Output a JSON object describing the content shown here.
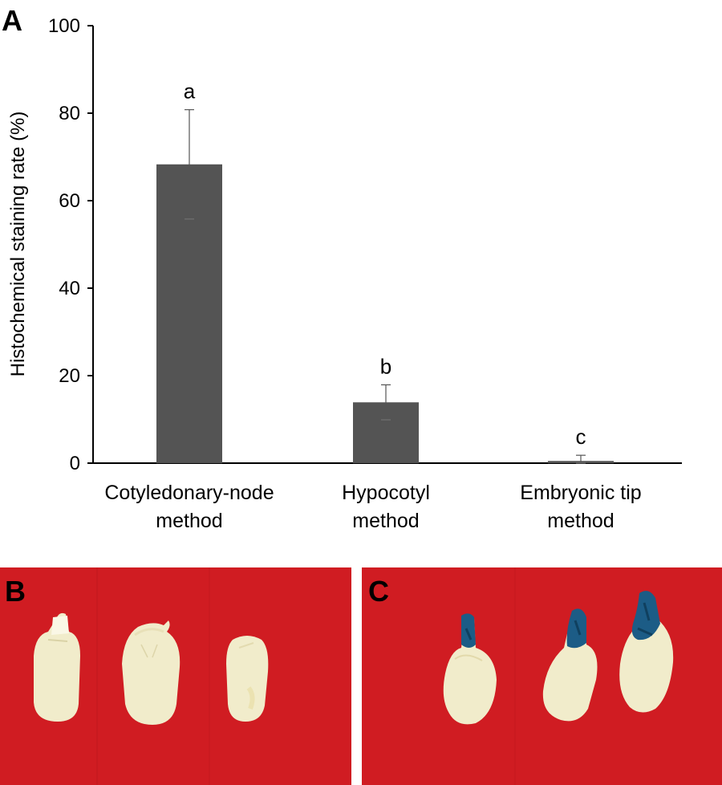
{
  "panel_labels": {
    "a": "A",
    "b": "B",
    "c": "C"
  },
  "chart_data": {
    "type": "bar",
    "title": "",
    "xlabel": "",
    "ylabel": "Histochemical staining rate (%)",
    "ylim": [
      0,
      100
    ],
    "yticks": [
      0,
      20,
      40,
      60,
      80,
      100
    ],
    "categories": [
      [
        "Cotyledonary-node",
        "method"
      ],
      [
        "Hypocotyl",
        "method"
      ],
      [
        "Embryonic tip",
        "method"
      ]
    ],
    "values": [
      68.3,
      13.9,
      0.5
    ],
    "errors": [
      12.5,
      4.0,
      1.3
    ],
    "significance_letters": [
      "a",
      "b",
      "c"
    ],
    "bar_color": "#545454",
    "grid": false,
    "legend": "none"
  },
  "photos": {
    "background_color": "#d01c22",
    "seed_color": "#f1eccb",
    "stain_color": "#1c5c86"
  }
}
